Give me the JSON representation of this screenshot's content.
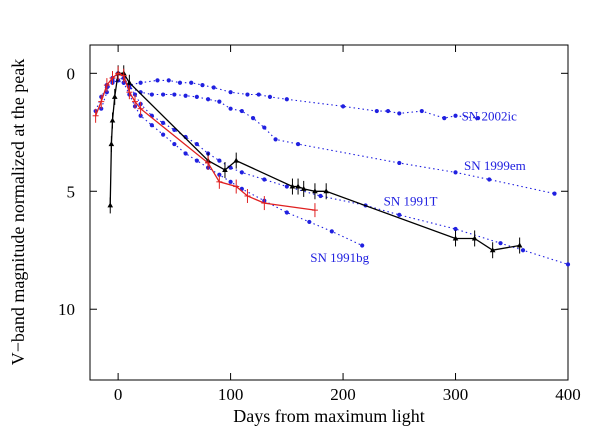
{
  "chart_data": {
    "type": "scatter",
    "title": "",
    "xlabel": "Days from maximum light",
    "ylabel": "V−band magnitude normalized at the peak",
    "xlim": [
      -25,
      400
    ],
    "ylim": [
      13,
      -1.2
    ],
    "y_inverted": true,
    "x_ticks": [
      0,
      100,
      200,
      300,
      400
    ],
    "y_ticks": [
      0,
      5,
      10
    ],
    "grid": false,
    "legend": "none",
    "annotations": [
      {
        "text": "SN 2002ic",
        "x": 330,
        "y": 2.0
      },
      {
        "text": "SN 1999em",
        "x": 335,
        "y": 4.1
      },
      {
        "text": "SN 1991T",
        "x": 260,
        "y": 5.6
      },
      {
        "text": "SN 1991bg",
        "x": 197,
        "y": 8.0
      }
    ],
    "series": [
      {
        "color": "#2020e0",
        "style": "dotted",
        "marker": "dot",
        "x": [
          -20,
          -15,
          -10,
          -5,
          0,
          5,
          10,
          20,
          35,
          45,
          55,
          65,
          75,
          85,
          100,
          115,
          125,
          135,
          150,
          200,
          230,
          240,
          250,
          270,
          290,
          300,
          320
        ],
        "y": [
          1.6,
          1.0,
          0.6,
          0.4,
          0.3,
          0.4,
          0.5,
          0.4,
          0.3,
          0.3,
          0.4,
          0.4,
          0.5,
          0.6,
          0.8,
          0.9,
          0.9,
          1.0,
          1.1,
          1.4,
          1.6,
          1.6,
          1.7,
          1.6,
          1.9,
          1.8,
          1.9
        ]
      },
      {
        "color": "#2020e0",
        "style": "dotted",
        "marker": "dot",
        "x": [
          -10,
          0,
          10,
          20,
          30,
          40,
          50,
          60,
          70,
          80,
          90,
          100,
          110,
          120,
          130,
          140,
          160,
          250,
          300,
          330,
          388
        ],
        "y": [
          0.5,
          0.3,
          0.6,
          0.8,
          0.9,
          0.9,
          0.9,
          0.95,
          1.0,
          1.1,
          1.2,
          1.5,
          1.6,
          1.9,
          2.3,
          2.8,
          3.0,
          3.8,
          4.2,
          4.5,
          5.1
        ]
      },
      {
        "color": "#2020e0",
        "style": "dotted",
        "marker": "dot",
        "x": [
          -10,
          -5,
          0,
          5,
          10,
          15,
          20,
          30,
          40,
          50,
          60,
          70,
          80,
          90,
          100,
          110,
          130,
          150,
          180,
          220,
          250,
          300,
          340,
          360,
          400
        ],
        "y": [
          0.5,
          0.2,
          0.0,
          0.2,
          0.5,
          0.9,
          1.3,
          1.8,
          2.1,
          2.4,
          2.7,
          3.0,
          3.4,
          3.7,
          4.0,
          4.2,
          4.5,
          4.8,
          5.2,
          5.6,
          6.0,
          6.6,
          7.2,
          7.5,
          8.1
        ]
      },
      {
        "color": "#2020e0",
        "style": "dotted",
        "marker": "dot",
        "x": [
          -15,
          -10,
          -5,
          0,
          5,
          10,
          15,
          20,
          30,
          40,
          50,
          60,
          70,
          80,
          90,
          100,
          110,
          130,
          150,
          170,
          190,
          217
        ],
        "y": [
          1.5,
          0.8,
          0.3,
          0.0,
          0.4,
          0.9,
          1.4,
          1.8,
          2.2,
          2.6,
          3.0,
          3.4,
          3.7,
          4.0,
          4.3,
          4.6,
          4.9,
          5.4,
          5.9,
          6.3,
          6.7,
          7.3
        ]
      },
      {
        "color": "#000000",
        "style": "solid",
        "marker": "triangle",
        "x": [
          -7,
          -6,
          -5,
          -3,
          0,
          5,
          10,
          80,
          95,
          105,
          155,
          160,
          165,
          175,
          185,
          300,
          317,
          333,
          357
        ],
        "y": [
          5.6,
          3.0,
          2.0,
          1.0,
          0.0,
          0.0,
          0.4,
          3.7,
          4.1,
          3.7,
          4.8,
          4.8,
          4.9,
          5.0,
          5.0,
          7.0,
          7.0,
          7.5,
          7.3
        ]
      },
      {
        "color": "#e02020",
        "style": "solid",
        "marker": "errorbar",
        "x": [
          -20,
          -15,
          -10,
          -5,
          0,
          5,
          10,
          15,
          20,
          80,
          90,
          105,
          115,
          130,
          175
        ],
        "y": [
          1.8,
          1.2,
          0.5,
          0.2,
          0.0,
          0.1,
          0.8,
          1.2,
          1.5,
          3.8,
          4.6,
          4.8,
          5.2,
          5.5,
          5.8
        ]
      }
    ]
  }
}
